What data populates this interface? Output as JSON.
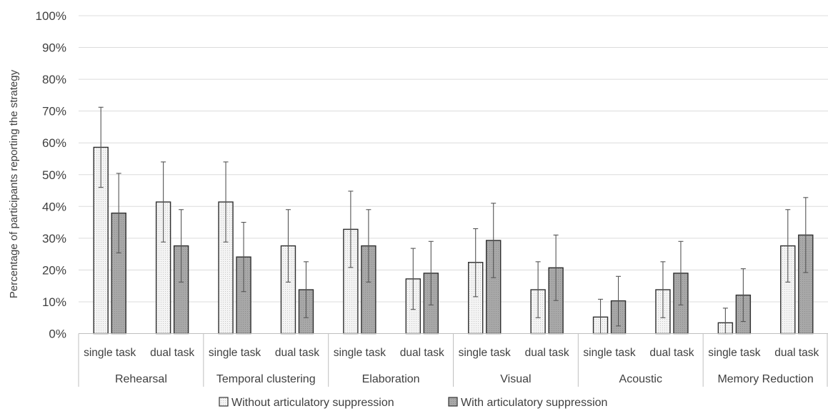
{
  "chart_data": {
    "type": "bar",
    "ylabel": "Percentage of participants reporting the strategy",
    "ylim": [
      0,
      100
    ],
    "yticks": [
      "0%",
      "10%",
      "20%",
      "30%",
      "40%",
      "50%",
      "60%",
      "70%",
      "80%",
      "90%",
      "100%"
    ],
    "grid": true,
    "legend_position": "bottom",
    "groups": [
      {
        "name": "Rehearsal",
        "categories": [
          "single task",
          "dual task"
        ]
      },
      {
        "name": "Temporal clustering",
        "categories": [
          "single task",
          "dual task"
        ]
      },
      {
        "name": "Elaboration",
        "categories": [
          "single task",
          "dual task"
        ]
      },
      {
        "name": "Visual",
        "categories": [
          "single task",
          "dual task"
        ]
      },
      {
        "name": "Acoustic",
        "categories": [
          "single task",
          "dual task"
        ]
      },
      {
        "name": "Memory Reduction",
        "categories": [
          "single task",
          "dual task"
        ]
      }
    ],
    "series": [
      {
        "name": "Without articulatory suppression",
        "color": "#f2f2f2",
        "values": [
          58.6,
          41.4,
          41.4,
          27.6,
          32.8,
          17.2,
          22.4,
          13.8,
          5.2,
          13.8,
          3.4,
          27.6
        ],
        "error_low": [
          46.0,
          28.8,
          28.8,
          16.2,
          20.8,
          7.6,
          11.6,
          5.0,
          0.0,
          5.0,
          0.0,
          16.2
        ],
        "error_high": [
          71.2,
          54.0,
          54.0,
          39.0,
          44.8,
          26.8,
          33.0,
          22.6,
          10.8,
          22.6,
          8.0,
          39.0
        ]
      },
      {
        "name": "With articulatory suppression",
        "color": "#a6a6a6",
        "values": [
          37.9,
          27.6,
          24.1,
          13.8,
          27.6,
          19.0,
          29.3,
          20.7,
          10.3,
          19.0,
          12.1,
          31.0
        ],
        "error_low": [
          25.4,
          16.2,
          13.2,
          5.0,
          16.2,
          9.0,
          17.6,
          10.4,
          2.4,
          9.0,
          3.8,
          19.2
        ],
        "error_high": [
          50.4,
          39.0,
          35.0,
          22.6,
          39.0,
          29.0,
          41.0,
          31.0,
          18.0,
          29.0,
          20.4,
          42.8
        ]
      }
    ]
  }
}
